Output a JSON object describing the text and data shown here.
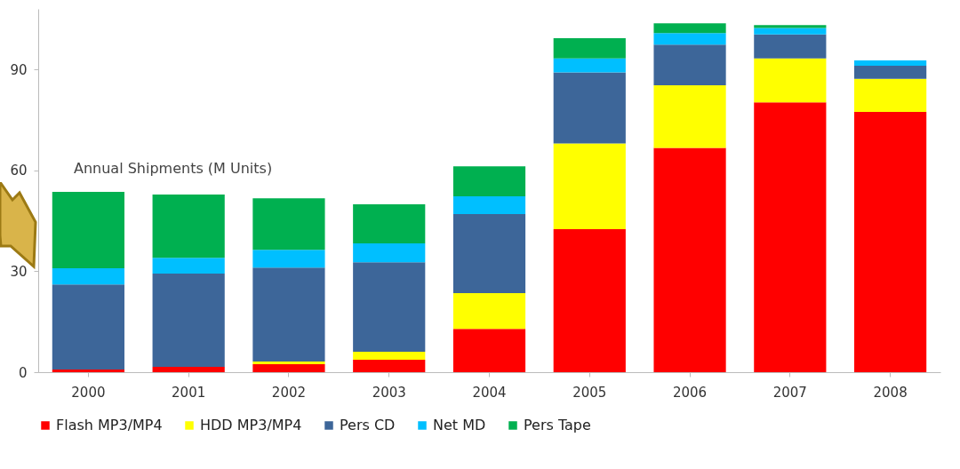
{
  "chart_data": {
    "type": "bar",
    "stacked": true,
    "categories": [
      "2000",
      "2001",
      "2002",
      "2003",
      "2004",
      "2005",
      "2006",
      "2007",
      "2008"
    ],
    "series": [
      {
        "name": "Flash MP3/MP4",
        "color": "#ff0000",
        "values": [
          0.8,
          1.6,
          2.4,
          3.7,
          12.9,
          42.5,
          66.7,
          80.2,
          77.4
        ]
      },
      {
        "name": "HDD MP3/MP4",
        "color": "#ffff00",
        "values": [
          0,
          0,
          0.8,
          2.4,
          10.6,
          25.5,
          18.6,
          13.1,
          9.8
        ]
      },
      {
        "name": "Pers CD",
        "color": "#3d6699",
        "values": [
          25.3,
          27.7,
          27.9,
          26.6,
          23.5,
          21.1,
          12.1,
          7.1,
          3.9
        ]
      },
      {
        "name": "Net MD",
        "color": "#00bfff",
        "values": [
          4.8,
          4.7,
          5.3,
          5.6,
          5.3,
          4.2,
          3.4,
          1.9,
          1.6
        ]
      },
      {
        "name": "Pers Tape",
        "color": "#00b050",
        "values": [
          22.7,
          18.8,
          15.3,
          11.6,
          8.9,
          6.0,
          2.9,
          0.9,
          0
        ]
      }
    ],
    "ylim": [
      0,
      108
    ],
    "yticks": [
      0,
      30,
      60,
      90
    ],
    "annotations": [
      "Annual Shipments (M Units)"
    ],
    "legend": "bottom"
  }
}
